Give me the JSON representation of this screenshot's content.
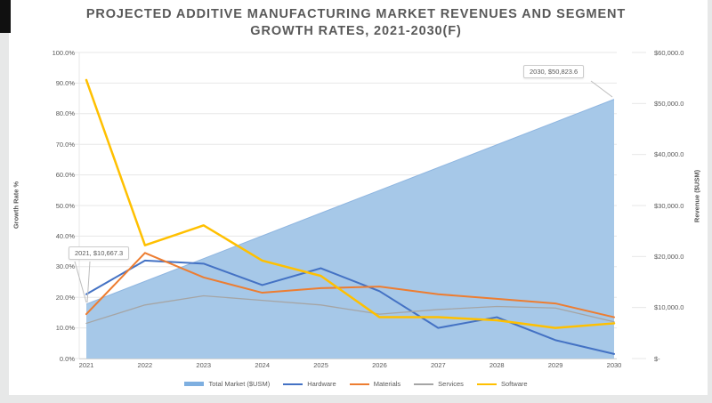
{
  "ui": {
    "background_color": "#e7e8e8",
    "card_color": "#ffffff",
    "text_color": "#595959",
    "grid_color": "#e7e7e7",
    "axis_line_color": "#d6d6d6",
    "leader_line_color": "#bdbdbd"
  },
  "chart_data": {
    "type": "area",
    "subtype": "combo-area-lines",
    "title": "PROJECTED ADDITIVE MANUFACTURING MARKET REVENUES AND SEGMENT GROWTH RATES, 2021-2030(F)",
    "title_lines": [
      "PROJECTED ADDITIVE MANUFACTURING MARKET REVENUES AND SEGMENT",
      "GROWTH RATES, 2021-2030(F)"
    ],
    "categories": [
      "2021",
      "2022",
      "2023",
      "2024",
      "2025",
      "2026",
      "2027",
      "2028",
      "2029",
      "2030"
    ],
    "area_series": {
      "name": "Total Market ($USM)",
      "axis": "right",
      "fill_color": "#A6C8E8",
      "edge_color": "#8FB6E0",
      "legend_color": "#7EAFE0",
      "values": [
        10667.3,
        15129.1,
        19590.9,
        24052.7,
        28514.6,
        32976.4,
        37438.2,
        41900.0,
        46361.8,
        50823.6
      ]
    },
    "series": [
      {
        "name": "Hardware",
        "color": "#4472C4",
        "width": 2,
        "values": [
          21,
          32,
          31,
          24,
          29.5,
          22,
          10,
          13.5,
          6,
          1.5
        ]
      },
      {
        "name": "Materials",
        "color": "#ED7D31",
        "width": 2,
        "values": [
          14.5,
          34.5,
          26.5,
          21.5,
          23,
          23.5,
          21,
          19.5,
          18,
          13.5
        ]
      },
      {
        "name": "Services",
        "color": "#A5A5A5",
        "width": 1.3,
        "values": [
          11.5,
          17.5,
          20.5,
          19,
          17.5,
          14.5,
          16,
          17,
          16.5,
          12
        ]
      },
      {
        "name": "Software",
        "color": "#FFC000",
        "width": 2.5,
        "values": [
          91,
          37,
          43.5,
          32,
          27,
          13.5,
          13.5,
          12.5,
          10,
          11.5
        ]
      }
    ],
    "left_axis": {
      "label": "Growth Rate %",
      "min": 0,
      "max": 100,
      "ticks": [
        "0.0%",
        "10.0%",
        "20.0%",
        "30.0%",
        "40.0%",
        "50.0%",
        "60.0%",
        "70.0%",
        "80.0%",
        "90.0%",
        "100.0%"
      ]
    },
    "right_axis": {
      "label": "Revenue ($USM)",
      "min": 0,
      "max": 60000,
      "ticks": [
        "$-",
        "$10,000.0",
        "$20,000.0",
        "$30,000.0",
        "$40,000.0",
        "$50,000.0",
        "$60,000.0"
      ]
    },
    "x_axis": {
      "labels": [
        "2021",
        "2022",
        "2023",
        "2024",
        "2025",
        "2026",
        "2027",
        "2028",
        "2029",
        "2030"
      ]
    },
    "annotations": [
      {
        "label": "2021, $10,667.3",
        "year": "2021",
        "value": 10667.3
      },
      {
        "label": "2030, $50,823.6",
        "year": "2030",
        "value": 50823.6
      }
    ],
    "legend": {
      "position": "bottom",
      "items": [
        {
          "label": "Total Market ($USM)",
          "marker": "thick-bar",
          "color": "#7EAFE0"
        },
        {
          "label": "Hardware",
          "marker": "line",
          "color": "#4472C4"
        },
        {
          "label": "Materials",
          "marker": "line",
          "color": "#ED7D31"
        },
        {
          "label": "Services",
          "marker": "line",
          "color": "#A5A5A5"
        },
        {
          "label": "Software",
          "marker": "line",
          "color": "#FFC000"
        }
      ]
    },
    "grid": true
  }
}
